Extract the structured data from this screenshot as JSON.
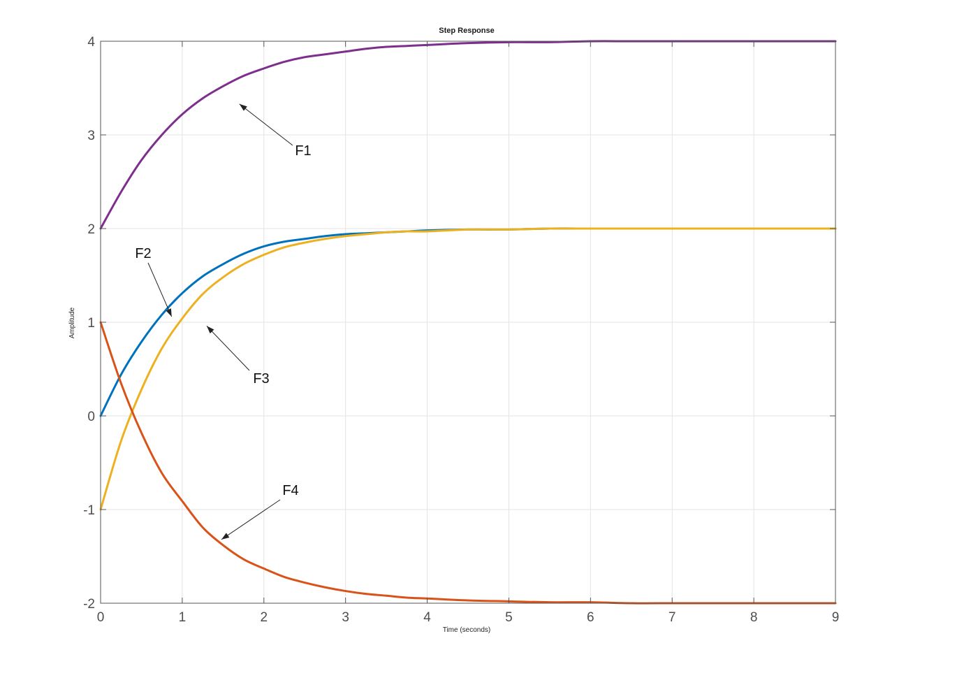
{
  "chart_data": {
    "type": "line",
    "title": "Step Response",
    "xlabel": "Time (seconds)",
    "ylabel": "Amplitude",
    "xlim": [
      0,
      9
    ],
    "ylim": [
      -2,
      4
    ],
    "xticks": [
      "0",
      "1",
      "2",
      "3",
      "4",
      "5",
      "6",
      "7",
      "8",
      "9"
    ],
    "yticks": [
      "-2",
      "-1",
      "0",
      "1",
      "2",
      "3",
      "4"
    ],
    "grid": true,
    "x": [
      0,
      0.25,
      0.5,
      0.75,
      1,
      1.25,
      1.5,
      1.75,
      2,
      2.25,
      2.5,
      2.75,
      3,
      3.25,
      3.5,
      3.75,
      4,
      4.5,
      5,
      5.5,
      6,
      6.5,
      7,
      7.5,
      8,
      8.5,
      9
    ],
    "series": [
      {
        "color": "#7e2f8e",
        "values": [
          2.0,
          2.39,
          2.73,
          3.0,
          3.22,
          3.39,
          3.52,
          3.63,
          3.71,
          3.78,
          3.83,
          3.86,
          3.89,
          3.92,
          3.94,
          3.95,
          3.96,
          3.98,
          3.99,
          3.99,
          4.0,
          4.0,
          4.0,
          4.0,
          4.0,
          4.0,
          4.0
        ]
      },
      {
        "color": "#0072bd",
        "values": [
          0.0,
          0.44,
          0.79,
          1.08,
          1.31,
          1.49,
          1.62,
          1.73,
          1.81,
          1.86,
          1.89,
          1.92,
          1.94,
          1.95,
          1.96,
          1.97,
          1.98,
          1.99,
          1.99,
          2.0,
          2.0,
          2.0,
          2.0,
          2.0,
          2.0,
          2.0,
          2.0
        ]
      },
      {
        "color": "#edb120",
        "values": [
          -1.0,
          -0.27,
          0.28,
          0.72,
          1.04,
          1.3,
          1.48,
          1.62,
          1.72,
          1.8,
          1.85,
          1.89,
          1.92,
          1.94,
          1.96,
          1.97,
          1.97,
          1.99,
          1.99,
          2.0,
          2.0,
          2.0,
          2.0,
          2.0,
          2.0,
          2.0,
          2.0
        ]
      },
      {
        "color": "#d95319",
        "values": [
          1.0,
          0.35,
          -0.18,
          -0.61,
          -0.91,
          -1.19,
          -1.38,
          -1.53,
          -1.63,
          -1.72,
          -1.78,
          -1.83,
          -1.87,
          -1.9,
          -1.92,
          -1.94,
          -1.95,
          -1.97,
          -1.98,
          -1.99,
          -1.99,
          -2.0,
          -2.0,
          -2.0,
          -2.0,
          -2.0,
          -2.0
        ]
      }
    ],
    "annotations": [
      {
        "text": "F1",
        "target": [
          1.7,
          3.33
        ]
      },
      {
        "text": "F2",
        "target": [
          0.87,
          1.06
        ]
      },
      {
        "text": "F3",
        "target": [
          1.3,
          0.96
        ]
      },
      {
        "text": "F4",
        "target": [
          1.48,
          -1.32
        ]
      }
    ]
  }
}
